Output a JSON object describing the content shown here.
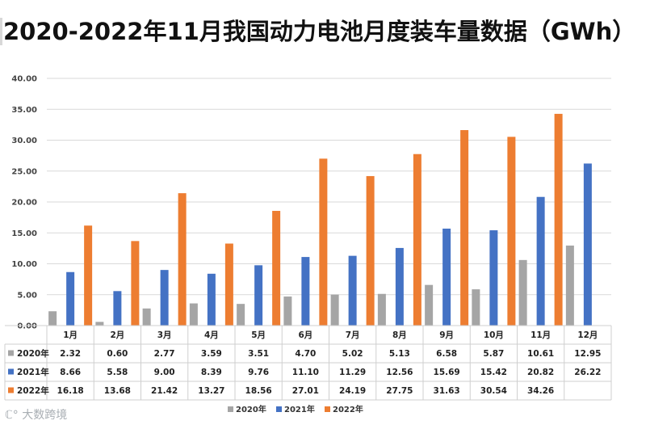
{
  "title": "2020-2022年11月我国动力电池月度装车量数据（GWh）",
  "watermark": "大数跨境",
  "chart_data": {
    "type": "bar",
    "title": "2020-2022年11月我国动力电池月度装车量数据（GWh）",
    "categories": [
      "1月",
      "2月",
      "3月",
      "4月",
      "5月",
      "6月",
      "7月",
      "8月",
      "9月",
      "10月",
      "11月",
      "12月"
    ],
    "ylim": [
      0,
      40
    ],
    "yticks": [
      "0.00",
      "5.00",
      "10.00",
      "15.00",
      "20.00",
      "25.00",
      "30.00",
      "35.00",
      "40.00"
    ],
    "grid": true,
    "legend_position": "bottom",
    "series": [
      {
        "name": "2020年",
        "color": "#a5a5a5",
        "values": [
          2.32,
          0.6,
          2.77,
          3.59,
          3.51,
          4.7,
          5.02,
          5.13,
          6.58,
          5.87,
          10.61,
          12.95
        ],
        "labels": [
          "2.32",
          "0.60",
          "2.77",
          "3.59",
          "3.51",
          "4.70",
          "5.02",
          "5.13",
          "6.58",
          "5.87",
          "10.61",
          "12.95"
        ]
      },
      {
        "name": "2021年",
        "color": "#4472c4",
        "values": [
          8.66,
          5.58,
          9.0,
          8.39,
          9.76,
          11.1,
          11.29,
          12.56,
          15.69,
          15.42,
          20.82,
          26.22
        ],
        "labels": [
          "8.66",
          "5.58",
          "9.00",
          "8.39",
          "9.76",
          "11.10",
          "11.29",
          "12.56",
          "15.69",
          "15.42",
          "20.82",
          "26.22"
        ]
      },
      {
        "name": "2022年",
        "color": "#ed7d31",
        "values": [
          16.18,
          13.68,
          21.42,
          13.27,
          18.56,
          27.01,
          24.19,
          27.75,
          31.63,
          30.54,
          34.26,
          null
        ],
        "labels": [
          "16.18",
          "13.68",
          "21.42",
          "13.27",
          "18.56",
          "27.01",
          "24.19",
          "27.75",
          "31.63",
          "30.54",
          "34.26",
          ""
        ]
      }
    ]
  }
}
